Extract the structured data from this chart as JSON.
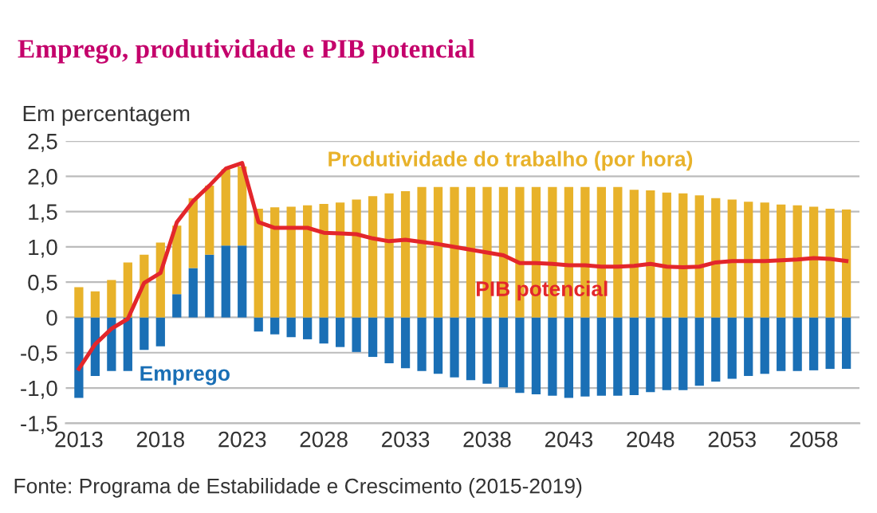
{
  "chart_data": {
    "type": "bar",
    "stacked": true,
    "title": "Emprego, produtividade e PIB potencial",
    "ylabel": "Em percentagem",
    "categories": [
      "2013",
      null,
      null,
      null,
      null,
      "2018",
      null,
      null,
      null,
      null,
      "2023",
      null,
      null,
      null,
      null,
      "2028",
      null,
      null,
      null,
      null,
      "2033",
      null,
      null,
      null,
      null,
      "2038",
      null,
      null,
      null,
      null,
      "2043",
      null,
      null,
      null,
      null,
      "2048",
      null,
      null,
      null,
      null,
      "2053",
      null,
      null,
      null,
      null,
      "2058",
      null,
      null
    ],
    "series": [
      {
        "name": "Emprego",
        "color": "#1a6fb5",
        "values": [
          -1.14,
          -0.83,
          -0.76,
          -0.76,
          -0.46,
          -0.41,
          0.33,
          0.7,
          0.89,
          1.02,
          1.02,
          -0.2,
          -0.24,
          -0.28,
          -0.31,
          -0.37,
          -0.42,
          -0.49,
          -0.56,
          -0.65,
          -0.72,
          -0.76,
          -0.8,
          -0.85,
          -0.89,
          -0.94,
          -0.99,
          -1.07,
          -1.09,
          -1.11,
          -1.14,
          -1.12,
          -1.11,
          -1.11,
          -1.1,
          -1.06,
          -1.03,
          -1.03,
          -0.97,
          -0.91,
          -0.87,
          -0.83,
          -0.8,
          -0.76,
          -0.76,
          -0.75,
          -0.73,
          -0.73
        ]
      },
      {
        "name": "Produtividade do trabalho (por hora)",
        "color": "#e8b22a",
        "values": [
          0.43,
          0.37,
          0.53,
          0.78,
          0.89,
          1.06,
          0.97,
          0.99,
          0.98,
          1.08,
          1.12,
          1.54,
          1.56,
          1.57,
          1.59,
          1.61,
          1.63,
          1.67,
          1.72,
          1.76,
          1.79,
          1.85,
          1.85,
          1.85,
          1.85,
          1.85,
          1.85,
          1.85,
          1.85,
          1.85,
          1.85,
          1.85,
          1.85,
          1.85,
          1.81,
          1.8,
          1.77,
          1.76,
          1.73,
          1.69,
          1.67,
          1.64,
          1.63,
          1.6,
          1.59,
          1.57,
          1.54,
          1.53
        ]
      },
      {
        "name": "PIB potencial",
        "type": "line",
        "color": "#e3262b",
        "values": [
          -0.73,
          -0.38,
          -0.16,
          -0.02,
          0.49,
          0.63,
          1.35,
          1.65,
          1.87,
          2.11,
          2.19,
          1.35,
          1.27,
          1.27,
          1.27,
          1.2,
          1.19,
          1.18,
          1.12,
          1.08,
          1.1,
          1.07,
          1.04,
          1.0,
          0.96,
          0.92,
          0.88,
          0.77,
          0.77,
          0.76,
          0.74,
          0.74,
          0.72,
          0.72,
          0.73,
          0.76,
          0.72,
          0.71,
          0.72,
          0.78,
          0.8,
          0.8,
          0.8,
          0.81,
          0.82,
          0.84,
          0.83,
          0.8
        ]
      }
    ],
    "ylim": [
      -1.5,
      2.5
    ],
    "yticks": [
      {
        "value": -1.5,
        "label": "-1,5"
      },
      {
        "value": -1.0,
        "label": "-1,0"
      },
      {
        "value": -0.5,
        "label": "-0,5"
      },
      0,
      {
        "value": 0.5,
        "label": "0,5"
      },
      {
        "value": 1.0,
        "label": "1,0"
      },
      {
        "value": 1.5,
        "label": "1,5"
      },
      {
        "value": 2.0,
        "label": "2,0"
      },
      {
        "value": 2.5,
        "label": "2,5"
      }
    ],
    "grid": "y",
    "legend": false,
    "annotations": [
      "Fonte: Programa de Estabilidade e Crescimento (2015-2019)"
    ]
  }
}
